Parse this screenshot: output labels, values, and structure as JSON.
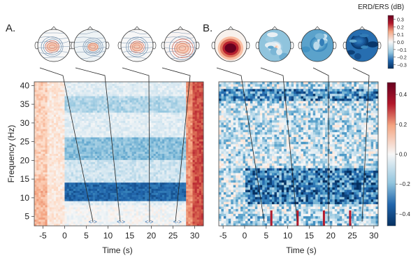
{
  "chart_data": [
    {
      "panel": "A.",
      "type": "heatmap",
      "xlabel": "Time (s)",
      "ylabel": "Frequency (Hz)",
      "xlim": [
        -7,
        32
      ],
      "ylim": [
        2.5,
        41
      ],
      "xticks": [
        "-5",
        "0",
        "5",
        "10",
        "15",
        "20",
        "25",
        "30"
      ],
      "yticks": [
        "5",
        "10",
        "15",
        "20",
        "25",
        "30",
        "35",
        "40"
      ],
      "description_bands": [
        {
          "freq_range_hz": [
            9,
            14
          ],
          "time_range_s": [
            0,
            28
          ],
          "level": "strong ERD"
        },
        {
          "freq_range_hz": [
            20,
            26
          ],
          "time_range_s": [
            0,
            28
          ],
          "level": "moderate ERD"
        },
        {
          "freq_range_hz": [
            2.5,
            41
          ],
          "time_range_s": [
            28,
            32
          ],
          "level": "ERS"
        },
        {
          "freq_range_hz": [
            2.5,
            41
          ],
          "time_range_s": [
            -7,
            0
          ],
          "level": "weak ERS"
        }
      ],
      "topomaps": 4,
      "markers": [
        "<->",
        "<->",
        "<->",
        "<->"
      ],
      "marker_times_s": [
        6.5,
        13,
        19.5,
        26
      ]
    },
    {
      "panel": "B.",
      "type": "heatmap",
      "xlabel": "Time (s)",
      "ylabel": "",
      "xlim": [
        -6,
        31
      ],
      "ylim": [
        2.5,
        41
      ],
      "xticks": [
        "-5",
        "0",
        "5",
        "10",
        "15",
        "20",
        "25",
        "30"
      ],
      "description_bands": [
        {
          "freq_range_hz": [
            8,
            18
          ],
          "time_range_s": [
            0,
            30
          ],
          "level": "strong ERD"
        },
        {
          "freq_range_hz": [
            36,
            39
          ],
          "time_range_s": [
            -6,
            31
          ],
          "level": "strong ERD"
        }
      ],
      "red_peaks_s": [
        6.2,
        12.3,
        18.4,
        24.5
      ],
      "topomaps": 4,
      "colorbar": {
        "ticks": [
          "0.4",
          "0.2",
          "0.0",
          "−0.2",
          "−0.4"
        ],
        "range": [
          -0.48,
          0.48
        ]
      }
    }
  ],
  "topomap_colorbar": {
    "title": "ERD/ERS (dB)",
    "ticks": [
      "0.3",
      "0.2",
      "0.1",
      "0.0",
      "−0.1",
      "−0.2",
      "−0.3"
    ],
    "range": [
      -0.3,
      0.3
    ]
  },
  "colors": {
    "diverging": [
      "#053061",
      "#2166ac",
      "#4393c3",
      "#92c5de",
      "#d1e5f0",
      "#f7f7f7",
      "#fddbc7",
      "#f4a582",
      "#d6604d",
      "#b2182b",
      "#67001f"
    ],
    "marker_red": "#b2182b",
    "marker_blue": "#2166ac"
  },
  "labels": {
    "panel_a": "A.",
    "panel_b": "B.",
    "xlabel": "Time (s)",
    "ylabel": "Frequency (Hz)",
    "topo_title": "ERD/ERS (dB)"
  }
}
